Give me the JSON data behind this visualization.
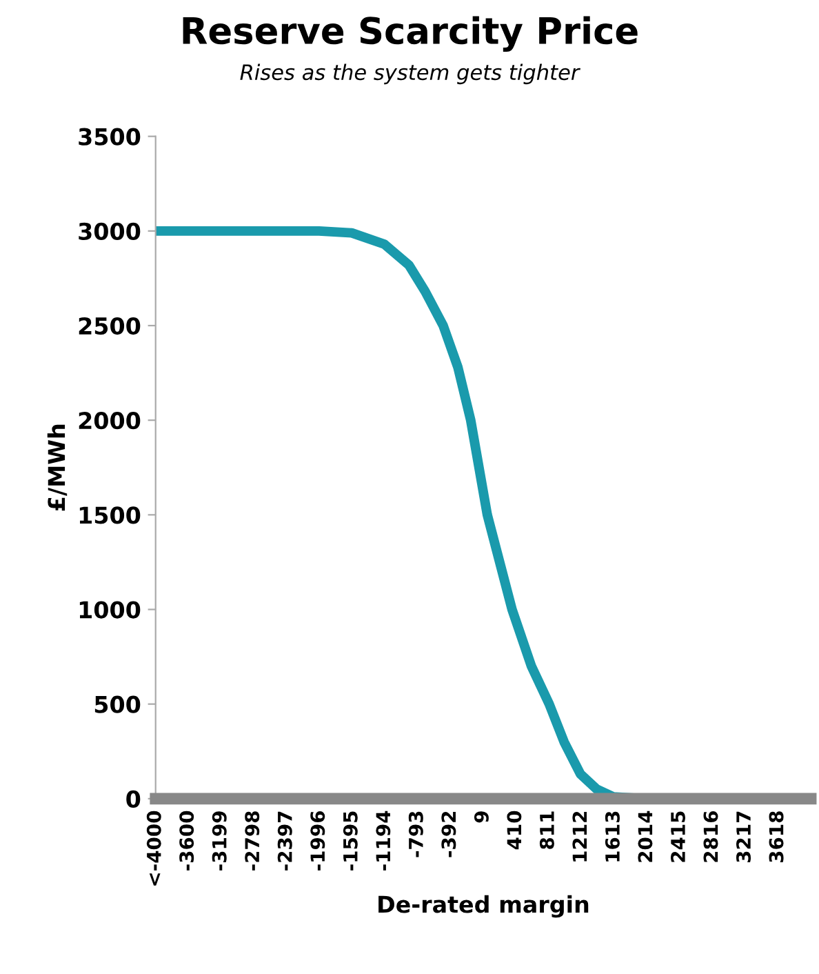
{
  "chart_data": {
    "type": "line",
    "title": "Reserve Scarcity Price",
    "subtitle": "Rises as the system gets tighter",
    "xlabel": "De-rated margin",
    "ylabel": "£/MWh",
    "x": [
      -4000,
      -2000,
      -1600,
      -1200,
      -900,
      -700,
      -480,
      -300,
      -143,
      60,
      363,
      600,
      818,
      1000,
      1200,
      1400,
      1600,
      2000,
      4020
    ],
    "series": [
      {
        "color": "#1a9aac",
        "values": [
          3000,
          3000,
          2990,
          2930,
          2820,
          2680,
          2500,
          2280,
          2000,
          1500,
          1000,
          700,
          500,
          300,
          130,
          50,
          10,
          0,
          0
        ]
      }
    ],
    "xlim": [
      -4000,
      4020
    ],
    "xticks": [
      {
        "value": -4000,
        "label": "<-4000"
      },
      -3600,
      -3199,
      -2798,
      -2397,
      -1996,
      -1595,
      -1194,
      -793,
      -392,
      9,
      410,
      811,
      1212,
      1613,
      2014,
      2415,
      2816,
      3217,
      3618
    ],
    "ylim": [
      0,
      3500
    ],
    "yticks": [
      0,
      500,
      1000,
      1500,
      2000,
      2500,
      3000,
      3500
    ],
    "grid": false,
    "legend": false,
    "marker": "none",
    "line_style": "solid"
  }
}
